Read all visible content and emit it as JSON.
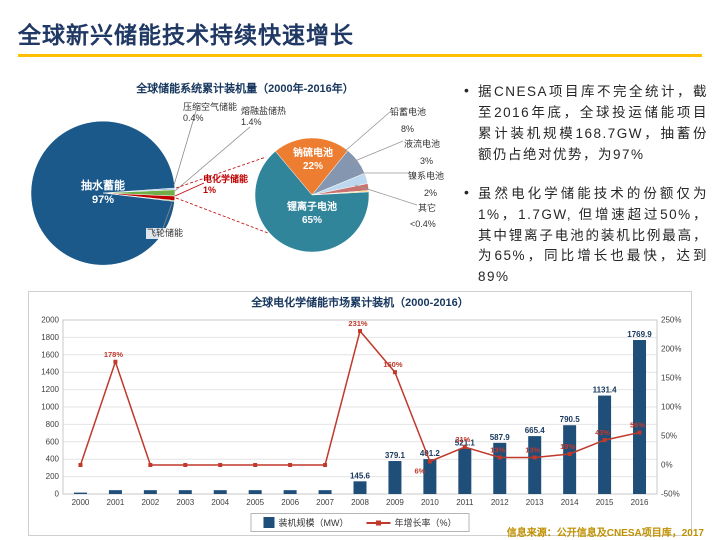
{
  "slide": {
    "title": "全球新兴储能技术持续快速增长",
    "source": "信息来源：公开信息及CNESA项目库，2017"
  },
  "bullets": [
    {
      "marker": "•",
      "text": "据CNESA项目库不完全统计，截至2016年底，全球投运储能项目累计装机规模168.7GW，抽蓄份额仍占绝对优势，为97%"
    },
    {
      "marker": "•",
      "text": "虽然电化学储能技术的份额仅为1%，1.7GW, 但增速超过50%，其中锂离子电池的装机比例最高，为65%，同比增长也最快，达到89%"
    }
  ],
  "chart_data": [
    {
      "type": "pie",
      "title": "全球储能系统累计装机量（2000年-2016年）",
      "slices": [
        {
          "label": "抽水蓄能",
          "value": 97,
          "display": "97%",
          "color": "#1B598B"
        },
        {
          "label": "压缩空气储能",
          "value": 0.4,
          "display": "0.4%",
          "color": "#9DC3E6"
        },
        {
          "label": "熔融盐储热",
          "value": 1.4,
          "display": "1.4%",
          "color": "#70AD47"
        },
        {
          "label": "电化学储能",
          "value": 1,
          "display": "1%",
          "color": "#C00000"
        },
        {
          "label": "飞轮储能",
          "value": 0.2,
          "display": "",
          "color": "#4F7A28"
        }
      ]
    },
    {
      "type": "pie",
      "title": "",
      "slices": [
        {
          "label": "钠硫电池",
          "value": 22,
          "display": "22%",
          "color": "#ED7D31"
        },
        {
          "label": "铅蓄电池",
          "value": 8,
          "display": "8%",
          "color": "#8496B0"
        },
        {
          "label": "液流电池",
          "value": 3,
          "display": "3%",
          "color": "#BDD7EE"
        },
        {
          "label": "镍系电池",
          "value": 2,
          "display": "2%",
          "color": "#C9726F"
        },
        {
          "label": "其它",
          "value": 0.4,
          "display": "<0.4%",
          "color": "#FFD966"
        },
        {
          "label": "锂离子电池",
          "value": 65,
          "display": "65%",
          "color": "#31859B"
        }
      ]
    },
    {
      "type": "bar+line",
      "title": "全球电化学储能市场累计装机（2000-2016）",
      "categories": [
        "2000",
        "2001",
        "2002",
        "2003",
        "2004",
        "2005",
        "2006",
        "2007",
        "2008",
        "2009",
        "2010",
        "2011",
        "2012",
        "2013",
        "2014",
        "2015",
        "2016"
      ],
      "series": [
        {
          "name": "装机规模（MW）",
          "kind": "bar",
          "color": "#1F4E79",
          "values": [
            16,
            44,
            44,
            44,
            44,
            44,
            44,
            44,
            145.6,
            379.1,
            401.2,
            521.1,
            587.9,
            665.4,
            790.5,
            1131.4,
            1769.9
          ],
          "point_labels": [
            "",
            "",
            "",
            "",
            "",
            "",
            "",
            "",
            "145.6",
            "379.1",
            "401.2",
            "521.1",
            "587.9",
            "665.4",
            "790.5",
            "1131.4",
            "1769.9"
          ]
        },
        {
          "name": "年增长率（%）",
          "kind": "line",
          "color": "#C0392B",
          "values": [
            0,
            178,
            0,
            0,
            0,
            0,
            0,
            0,
            231,
            160,
            6,
            31,
            13,
            13,
            19,
            43,
            56
          ],
          "point_labels": [
            "",
            "178%",
            "",
            "",
            "",
            "",
            "",
            "",
            "231%",
            "160%",
            "6%",
            "31%",
            "13%",
            "13%",
            "19%",
            "43%",
            "56%"
          ]
        }
      ],
      "y_left": {
        "min": 0,
        "max": 2000,
        "step": 200
      },
      "y_right": {
        "min": -50,
        "max": 250,
        "step": 50,
        "suffix": "%"
      },
      "legend_position": "bottom",
      "grid": true
    }
  ]
}
